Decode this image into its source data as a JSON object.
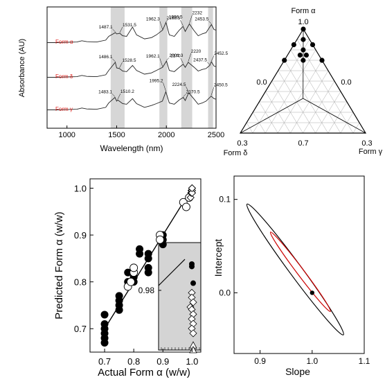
{
  "chart_data": [
    {
      "type": "line",
      "xlabel": "Wavelength (nm)",
      "ylabel": "Absorbance (AU)",
      "xlim": [
        800,
        2500
      ],
      "xticks": [
        1000,
        1500,
        2000,
        2500
      ],
      "shaded_bands": [
        [
          1440,
          1580
        ],
        [
          1930,
          2010
        ],
        [
          2150,
          2260
        ],
        [
          2420,
          2470
        ]
      ],
      "series": [
        {
          "name": "Form α",
          "x": [
            800,
            900,
            1000,
            1100,
            1150,
            1200,
            1300,
            1390,
            1420,
            1487.1,
            1500,
            1531.5,
            1560,
            1600,
            1660,
            1700,
            1780,
            1850,
            1900,
            1962.3,
            1996.5,
            2030,
            2080,
            2130,
            2168.5,
            2190,
            2232,
            2280,
            2320,
            2360,
            2400,
            2453.5,
            2480,
            2500
          ],
          "y": [
            0.3,
            0.3,
            0.31,
            0.32,
            0.36,
            0.33,
            0.32,
            0.38,
            0.5,
            0.62,
            0.58,
            0.6,
            0.52,
            0.5,
            0.8,
            0.55,
            0.42,
            0.46,
            0.55,
            0.7,
            0.95,
            0.55,
            0.5,
            0.7,
            0.82,
            0.66,
            0.9,
            0.68,
            0.52,
            0.58,
            0.62,
            0.88,
            0.72,
            0.7
          ],
          "labels": [
            "1487.1",
            "1531.5",
            "1962.3",
            "1996.5",
            "2168.5",
            "2232",
            "2453.5"
          ]
        },
        {
          "name": "Form δ",
          "x": [
            800,
            900,
            1000,
            1100,
            1150,
            1200,
            1300,
            1390,
            1420,
            1486.1,
            1500,
            1528.5,
            1560,
            1600,
            1660,
            1700,
            1780,
            1850,
            1900,
            1962.1,
            2001.3,
            2030,
            2080,
            2130,
            2170,
            2190,
            2220,
            2280,
            2320,
            2360,
            2400,
            2437.5,
            2452.5,
            2480,
            2500
          ],
          "y": [
            0.3,
            0.3,
            0.31,
            0.32,
            0.36,
            0.33,
            0.32,
            0.38,
            0.52,
            0.78,
            0.6,
            0.58,
            0.5,
            0.48,
            0.68,
            0.52,
            0.4,
            0.44,
            0.52,
            0.62,
            0.82,
            0.52,
            0.48,
            0.62,
            0.72,
            0.62,
            0.78,
            0.62,
            0.5,
            0.55,
            0.58,
            0.68,
            0.8,
            0.66,
            0.64
          ],
          "labels": [
            "1486.1",
            "1528.5",
            "1962.1",
            "2001.3",
            "2170",
            "2220",
            "2437.5",
            "2452.5"
          ]
        },
        {
          "name": "Form γ",
          "x": [
            800,
            900,
            1000,
            1100,
            1150,
            1200,
            1300,
            1390,
            1420,
            1483.1,
            1500,
            1510.2,
            1560,
            1600,
            1660,
            1700,
            1780,
            1850,
            1900,
            1960,
            1995.2,
            2030,
            2080,
            2130,
            2170.5,
            2190,
            2224.5,
            2280,
            2320,
            2360,
            2400,
            2450.5,
            2480,
            2500
          ],
          "y": [
            0.3,
            0.3,
            0.31,
            0.32,
            0.36,
            0.33,
            0.32,
            0.38,
            0.52,
            0.7,
            0.58,
            0.62,
            0.5,
            0.48,
            0.66,
            0.5,
            0.38,
            0.44,
            0.5,
            0.58,
            0.88,
            0.52,
            0.48,
            0.62,
            0.7,
            0.6,
            0.85,
            0.64,
            0.48,
            0.52,
            0.58,
            0.74,
            0.66,
            0.64
          ],
          "labels": [
            "1483.1",
            "1510.2",
            "1995.2",
            "2170.5",
            "2224.5",
            "2450.5"
          ]
        }
      ],
      "annotations": [
        "1487.1",
        "1531.5",
        "1996.5",
        "1962.3",
        "2168.5",
        "2232",
        "2453.5",
        "1486.1",
        "1528.5",
        "2001.3",
        "1962.1",
        "2220",
        "2170",
        "2437.5",
        "2452.5",
        "1483.1",
        "1510.2",
        "1995.2",
        "2170.5",
        "2224.5",
        "2450.5"
      ]
    },
    {
      "type": "scatter",
      "subtype": "ternary",
      "vertex_labels": {
        "top": "Form α",
        "left": "Form δ",
        "right": "Form γ"
      },
      "tick_labels": [
        "1.0",
        "0.0",
        "0.0",
        "0.3",
        "0.7",
        "0.3"
      ],
      "points": [
        {
          "alpha": 1.0,
          "delta": 0.0,
          "gamma": 0.0
        },
        {
          "alpha": 0.9,
          "delta": 0.05,
          "gamma": 0.05
        },
        {
          "alpha": 0.85,
          "delta": 0.0,
          "gamma": 0.15
        },
        {
          "alpha": 0.85,
          "delta": 0.15,
          "gamma": 0.0
        },
        {
          "alpha": 0.8,
          "delta": 0.1,
          "gamma": 0.1
        },
        {
          "alpha": 0.75,
          "delta": 0.15,
          "gamma": 0.1
        },
        {
          "alpha": 0.75,
          "delta": 0.1,
          "gamma": 0.15
        },
        {
          "alpha": 0.7,
          "delta": 0.3,
          "gamma": 0.0
        },
        {
          "alpha": 0.7,
          "delta": 0.15,
          "gamma": 0.15
        },
        {
          "alpha": 0.7,
          "delta": 0.0,
          "gamma": 0.3
        }
      ]
    },
    {
      "type": "scatter",
      "xlabel": "Actual Form α (w/w)",
      "ylabel": "Predicted Form α (w/w)",
      "xlim": [
        0.65,
        1.03
      ],
      "ylim": [
        0.65,
        1.02
      ],
      "xticks": [
        "0.7",
        "0.8",
        "0.9",
        "1.0"
      ],
      "yticks": [
        "0.7",
        "0.8",
        "0.9",
        "1.0"
      ],
      "fit_line": {
        "x": [
          0.7,
          1.0
        ],
        "y": [
          0.7,
          1.0
        ]
      },
      "series": [
        {
          "marker": "filled-circle",
          "x": [
            0.7,
            0.7,
            0.7,
            0.7,
            0.7,
            0.7,
            0.75,
            0.75,
            0.75,
            0.75,
            0.78,
            0.78,
            0.8,
            0.8,
            0.8,
            0.82,
            0.82,
            0.85,
            0.85,
            0.85,
            0.85,
            0.9,
            0.9,
            0.9
          ],
          "y": [
            0.68,
            0.7,
            0.71,
            0.73,
            0.69,
            0.67,
            0.74,
            0.76,
            0.77,
            0.75,
            0.8,
            0.82,
            0.8,
            0.81,
            0.83,
            0.86,
            0.87,
            0.82,
            0.83,
            0.86,
            0.85,
            0.88,
            0.89,
            0.9
          ]
        },
        {
          "marker": "open-circle",
          "x": [
            0.78,
            0.79,
            0.8,
            0.8,
            0.89,
            0.89,
            0.97,
            0.98,
            0.99
          ],
          "y": [
            0.79,
            0.8,
            0.82,
            0.83,
            0.9,
            0.89,
            0.97,
            0.96,
            0.98
          ]
        },
        {
          "marker": "open-diamond",
          "x": [
            0.995,
            0.997,
            0.998,
            1.0,
            1.0,
            1.0,
            1.0,
            1.0
          ],
          "y": [
            0.98,
            0.99,
            0.995,
            0.99,
            0.995,
            1.0,
            0.99,
            1.0
          ]
        }
      ],
      "inset": {
        "ytick_label": "0.98",
        "series": [
          {
            "marker": "filled-circle",
            "points": [
              [
                0.997,
                0.991
              ],
              [
                0.997,
                0.99
              ],
              [
                0.998,
                0.983
              ]
            ]
          },
          {
            "marker": "open-diamond",
            "points": [
              [
                0.997,
                0.979
              ],
              [
                0.997,
                0.977
              ],
              [
                0.998,
                0.975
              ],
              [
                0.996,
                0.973
              ],
              [
                0.997,
                0.972
              ],
              [
                0.998,
                0.97
              ],
              [
                0.997,
                0.968
              ],
              [
                0.998,
                0.966
              ],
              [
                0.997,
                0.964
              ],
              [
                0.998,
                0.962
              ]
            ]
          },
          {
            "marker": "open-triangle",
            "points": [
              [
                0.998,
                0.957
              ],
              [
                0.998,
                0.955
              ]
            ]
          }
        ]
      }
    },
    {
      "type": "scatter",
      "subtype": "confidence-ellipse",
      "xlabel": "Slope",
      "ylabel": "Intercept",
      "xlim": [
        0.85,
        1.1
      ],
      "ylim": [
        -0.065,
        0.125
      ],
      "xticks": [
        "0.9",
        "1.0",
        "1.1"
      ],
      "yticks": [
        "0.0",
        "0.1"
      ],
      "point": {
        "slope": 1.0,
        "intercept": 0.0
      },
      "ellipses": [
        {
          "color": "#000000",
          "from": [
            0.875,
            0.095
          ],
          "to": [
            1.06,
            -0.045
          ]
        },
        {
          "color": "#cc0000",
          "from": [
            0.92,
            0.065
          ],
          "to": [
            1.035,
            -0.02
          ]
        }
      ]
    }
  ]
}
